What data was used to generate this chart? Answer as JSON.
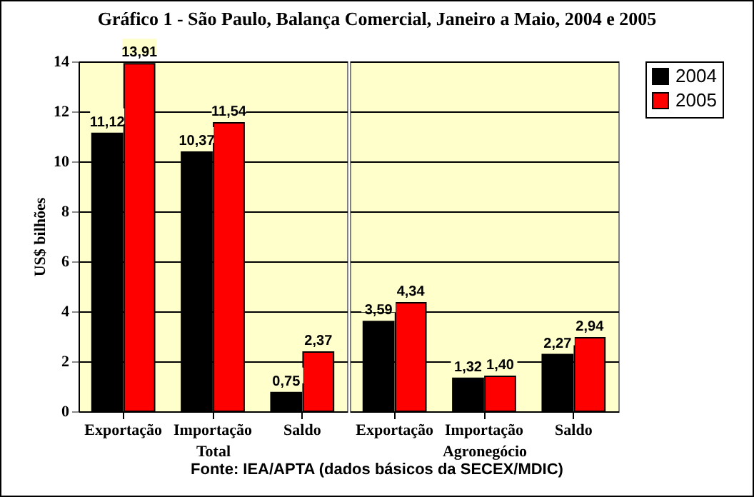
{
  "chart_data": [
    {
      "type": "bar",
      "title": "Gráfico 1 - São Paulo, Balança Comercial, Janeiro a Maio, 2004 e 2005",
      "xlabel": "Total",
      "ylabel": "US$ bilhões",
      "categories": [
        "Exportação",
        "Importação",
        "Saldo"
      ],
      "series": [
        {
          "name": "2004",
          "color": "#000000",
          "values": [
            11.12,
            10.37,
            0.75
          ],
          "value_labels": [
            "11,12",
            "10,37",
            "0,75"
          ]
        },
        {
          "name": "2005",
          "color": "#ff0000",
          "values": [
            13.91,
            11.54,
            2.37
          ],
          "value_labels": [
            "13,91",
            "11,54",
            "2,37"
          ]
        }
      ],
      "ylim": [
        0,
        14
      ],
      "yticks": [
        0,
        2,
        4,
        6,
        8,
        10,
        12,
        14
      ],
      "grid": "y",
      "legend": "right",
      "annotations": [
        "Fonte: IEA/APTA (dados básicos da SECEX/MDIC)"
      ]
    },
    {
      "type": "bar",
      "xlabel": "Agronegócio",
      "categories": [
        "Exportação",
        "Importação",
        "Saldo"
      ],
      "series": [
        {
          "name": "2004",
          "color": "#000000",
          "values": [
            3.59,
            1.32,
            2.27
          ],
          "value_labels": [
            "3,59",
            "1,32",
            "2,27"
          ]
        },
        {
          "name": "2005",
          "color": "#ff0000",
          "values": [
            4.34,
            1.4,
            2.94
          ],
          "value_labels": [
            "4,34",
            "1,40",
            "2,94"
          ]
        }
      ],
      "ylim": [
        0,
        14
      ],
      "yticks": [
        0,
        2,
        4,
        6,
        8,
        10,
        12,
        14
      ],
      "grid": "y",
      "tick_labels": "x",
      "legend": "right"
    }
  ]
}
